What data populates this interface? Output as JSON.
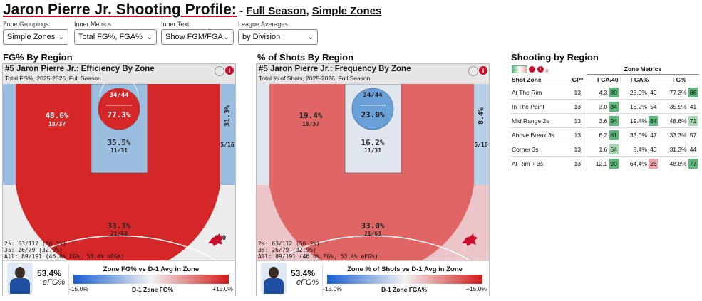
{
  "title": {
    "main": "Jaron Pierre Jr. Shooting Profile:",
    "sep": " - ",
    "full_season": "Full Season",
    "comma": ", ",
    "zones": "Simple Zones"
  },
  "controls": [
    {
      "label": "Zone Groupings",
      "value": "Simple Zones"
    },
    {
      "label": "Inner Metrics",
      "value": "Total FG%, FGA%"
    },
    {
      "label": "Inner Text",
      "value": "Show FGM/FGA"
    },
    {
      "label": "League Averages",
      "value": "by Division"
    }
  ],
  "left_panel": {
    "section_title": "FG% By Region",
    "header_title": "#5 Jaron Pierre Jr.: Efficiency By Zone",
    "header_sub": "Total FG%, 2025-2026, Full Season",
    "rim_top": "34/44",
    "rim_pct": "77.3%",
    "paint_pct": "35.5%",
    "paint_frac": "11/31",
    "mid_pct": "48.6%",
    "mid_frac": "18/37",
    "right_pct": "31.3%",
    "right_frac": "5/16",
    "three_pct": "33.3%",
    "three_frac": "21/63",
    "corner_frac": "0/0",
    "foot_2s": "2s: 63/112 (56.3%)",
    "foot_3s": "3s: 26/79 (32.9%)",
    "foot_all": "All: 89/191 (46.6% FG%, 53.4% eFG%)",
    "efg_value": "53.4%",
    "efg_label": "eFG%",
    "legend_title": "Zone FG% vs D-1 Avg in Zone",
    "legend_min": "-15.0%",
    "legend_mid": "D-1 Zone FG%",
    "legend_max": "+15.0%"
  },
  "right_panel": {
    "section_title": "% of Shots By Region",
    "header_title": "#5 Jaron Pierre Jr.: Frequency By Zone",
    "header_sub": "Total % of Shots, 2025-2026, Full Season",
    "rim_top": "34/44",
    "rim_pct": "23.0%",
    "paint_pct": "16.2%",
    "paint_frac": "11/31",
    "mid_pct": "19.4%",
    "mid_frac": "18/37",
    "right_pct": "8.4%",
    "right_frac": "5/16",
    "three_pct": "33.0%",
    "three_frac": "21/63",
    "foot_2s": "2s: 63/112 (56.3%)",
    "foot_3s": "3s: 26/79 (32.9%)",
    "foot_all": "All: 89/191 (46.6% FG%, 53.4% eFG%)",
    "efg_value": "53.4%",
    "efg_label": "eFG%",
    "legend_title": "Zone % of Shots vs D-1 Avg in Zone",
    "legend_min": "-15.0%",
    "legend_mid": "D-1 Zone FGA%",
    "legend_max": "+15.0%"
  },
  "table": {
    "title": "Shooting by Region",
    "group_header": "Zone Metrics",
    "columns": [
      "Shot Zone",
      "GP*",
      "FGA/40",
      "FGA%",
      "FG%"
    ],
    "rows": [
      {
        "zone": "At The Rim",
        "gp": "13",
        "fga40": "4.3",
        "fga40_pct": "80",
        "fga": "23.0%",
        "fga_pct": "49",
        "fg": "77.3%",
        "fg_pct": "88"
      },
      {
        "zone": "In The Paint",
        "gp": "13",
        "fga40": "3.0",
        "fga40_pct": "84",
        "fga": "16.2%",
        "fga_pct": "54",
        "fg": "35.5%",
        "fg_pct": "41"
      },
      {
        "zone": "Mid Range 2s",
        "gp": "13",
        "fga40": "3.6",
        "fga40_pct": "94",
        "fga": "19.4%",
        "fga_pct": "84",
        "fg": "48.6%",
        "fg_pct": "71"
      },
      {
        "zone": "Above Break 3s",
        "gp": "13",
        "fga40": "6.2",
        "fga40_pct": "81",
        "fga": "33.0%",
        "fga_pct": "47",
        "fg": "33.3%",
        "fg_pct": "57"
      },
      {
        "zone": "Corner 3s",
        "gp": "13",
        "fga40": "1.6",
        "fga40_pct": "64",
        "fga": "8.4%",
        "fga_pct": "40",
        "fg": "31.3%",
        "fg_pct": "44"
      },
      {
        "zone": "At Rim + 3s",
        "gp": "13",
        "fga40": "12.1",
        "fga40_pct": "90",
        "fga": "64.4%",
        "fga_pct": "26",
        "fg": "48.8%",
        "fg_pct": "77"
      }
    ]
  },
  "colors": {
    "accent": "#c8102e",
    "hot": "#d62728",
    "warm": "#e06666",
    "light_red": "#ebc5c8",
    "cool": "#9bbde0",
    "blue": "#6aa0d8",
    "neutral": "#ececec",
    "green": "#5cb87a",
    "pink": "#f0a0a8"
  },
  "icons": [
    "chevron-down-icon",
    "toggle-icon",
    "info-icon",
    "share-icon",
    "download-icon",
    "team-logo-icon",
    "player-photo"
  ]
}
